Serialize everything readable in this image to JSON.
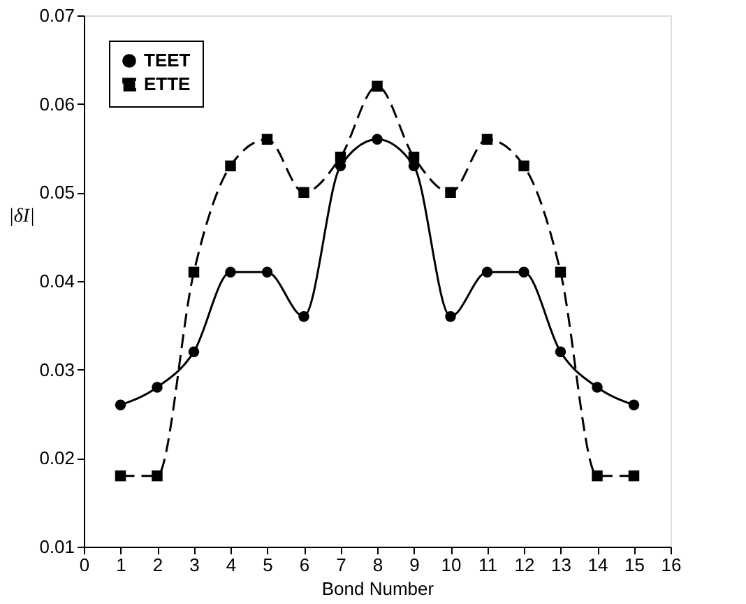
{
  "chart_data": {
    "type": "line",
    "xlabel": "Bond Number",
    "ylabel": "|δI|",
    "x": [
      1,
      2,
      3,
      4,
      5,
      6,
      7,
      8,
      9,
      10,
      11,
      12,
      13,
      14,
      15
    ],
    "series": [
      {
        "name": "TEET",
        "color": "#000000",
        "marker": "circle",
        "line_style": "solid",
        "values": [
          0.026,
          0.028,
          0.032,
          0.041,
          0.041,
          0.036,
          0.053,
          0.056,
          0.053,
          0.036,
          0.041,
          0.041,
          0.032,
          0.028,
          0.026
        ]
      },
      {
        "name": "ETTE",
        "color": "#000000",
        "marker": "square",
        "line_style": "dashed",
        "values": [
          0.018,
          0.018,
          0.041,
          0.053,
          0.056,
          0.05,
          0.054,
          0.062,
          0.054,
          0.05,
          0.056,
          0.053,
          0.041,
          0.018,
          0.018
        ]
      }
    ],
    "xlim": [
      0,
      16
    ],
    "xticks": [
      0,
      1,
      2,
      3,
      4,
      5,
      6,
      7,
      8,
      9,
      10,
      11,
      12,
      13,
      14,
      15,
      16
    ],
    "ylim": [
      0.01,
      0.07
    ],
    "yticks": [
      0.01,
      0.02,
      0.03,
      0.04,
      0.05,
      0.06,
      0.07
    ],
    "grid": false,
    "legend": "top left"
  }
}
